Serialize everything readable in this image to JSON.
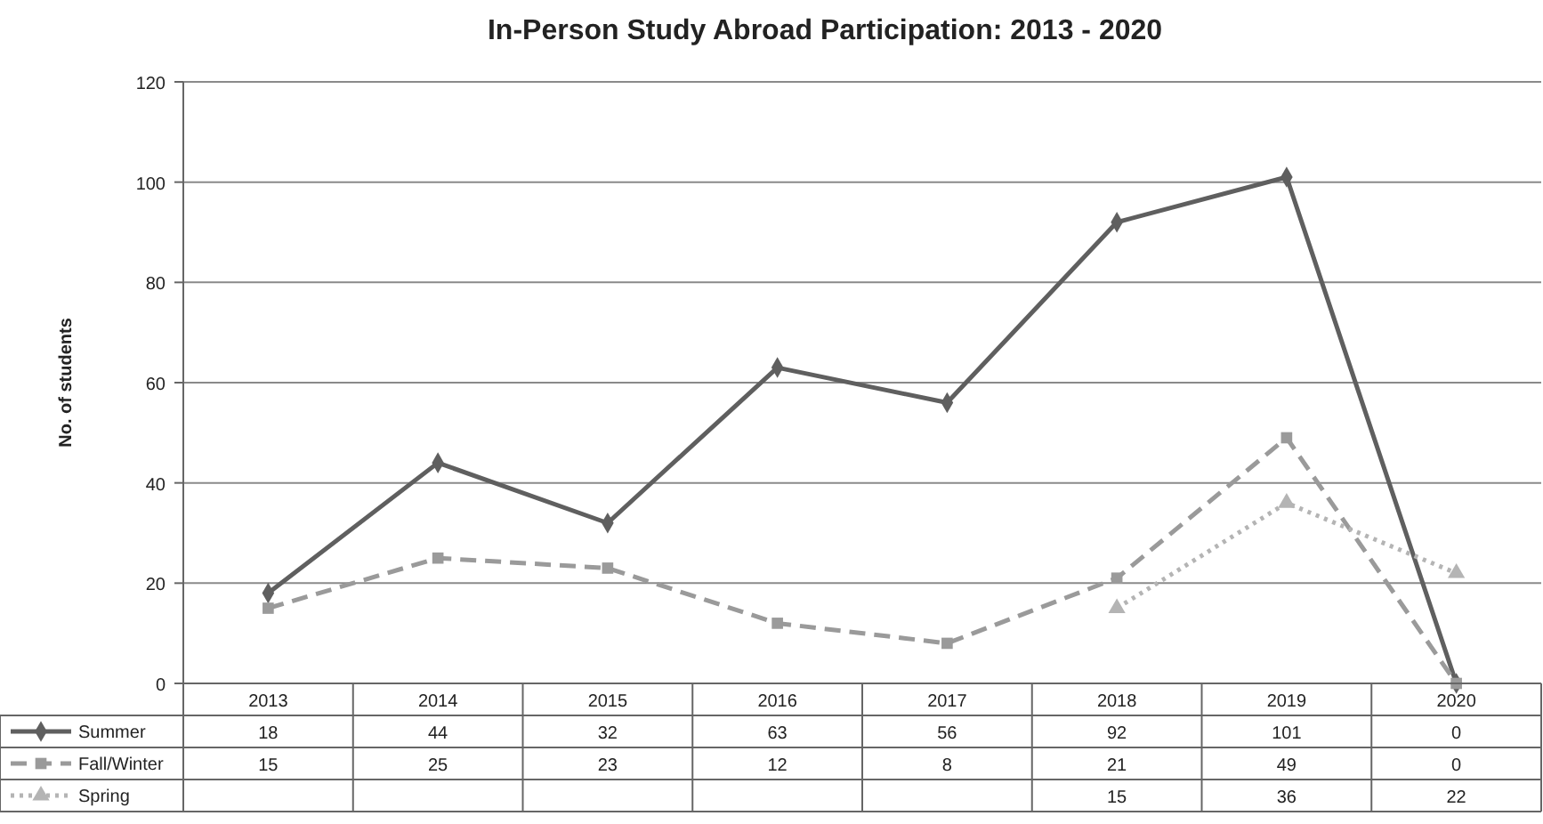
{
  "chart_data": {
    "type": "line",
    "title": "In-Person Study Abroad Participation: 2013 - 2020",
    "ylabel": "No. of students",
    "categories": [
      "2013",
      "2014",
      "2015",
      "2016",
      "2017",
      "2018",
      "2019",
      "2020"
    ],
    "series": [
      {
        "name": "Summer",
        "color": "#5f5f5f",
        "marker": "diamond",
        "line_style": "solid",
        "values": [
          18,
          44,
          32,
          63,
          56,
          92,
          101,
          0
        ]
      },
      {
        "name": "Fall/Winter",
        "color": "#9a9a9a",
        "marker": "square",
        "line_style": "dashed",
        "values": [
          15,
          25,
          23,
          12,
          8,
          21,
          49,
          0
        ]
      },
      {
        "name": "Spring",
        "color": "#b4b4b4",
        "marker": "triangle",
        "line_style": "dotted",
        "values": [
          null,
          null,
          null,
          null,
          null,
          15,
          36,
          22
        ]
      }
    ],
    "ylim": [
      0,
      120
    ],
    "yticks": [
      0,
      20,
      40,
      60,
      80,
      100,
      120
    ],
    "grid": "y",
    "legend": "bottom",
    "data_labels": true
  }
}
